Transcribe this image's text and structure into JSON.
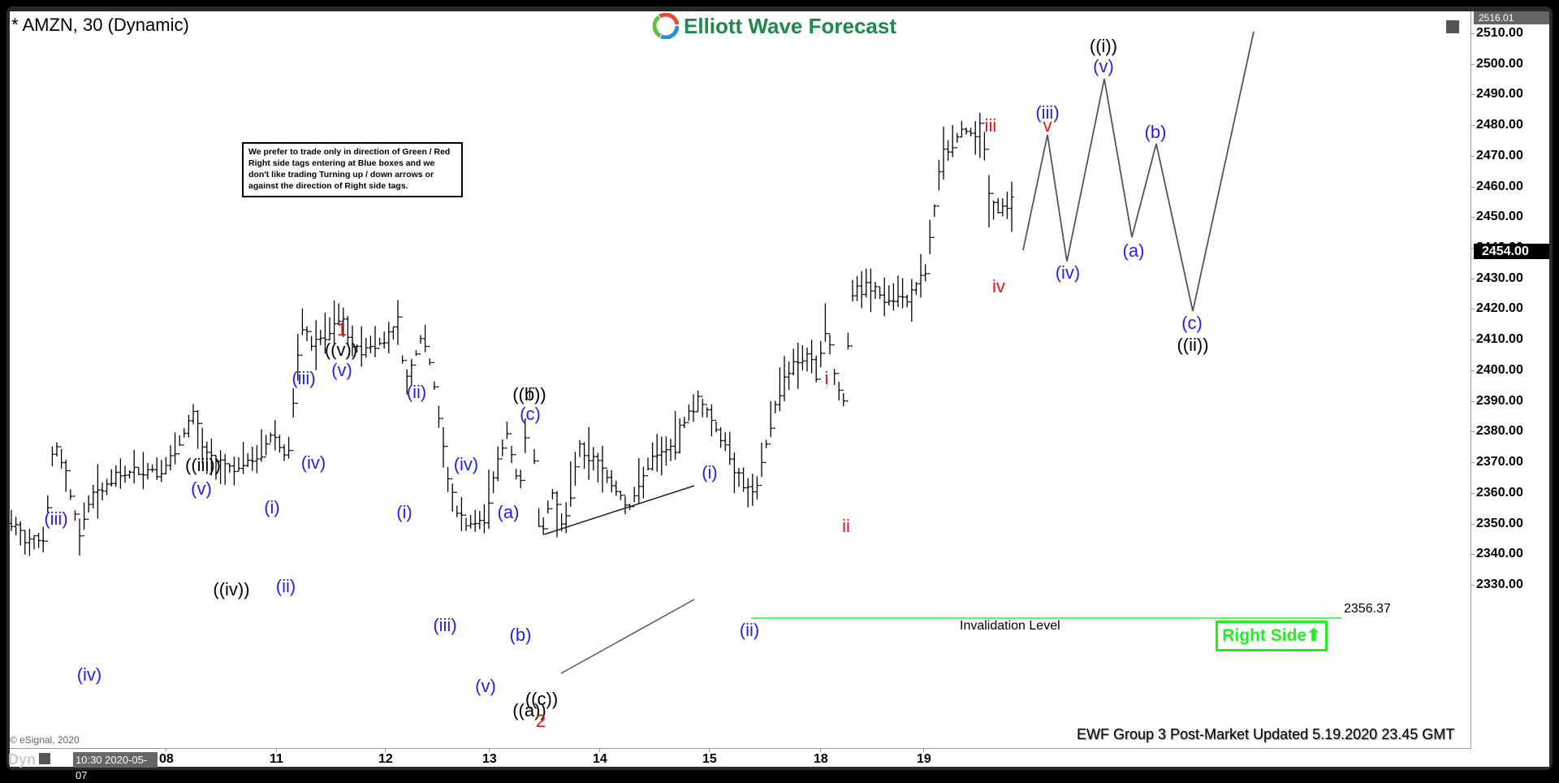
{
  "header": {
    "symbol_title": "* AMZN, 30 (Dynamic)",
    "brand": "Elliott Wave Forecast"
  },
  "note": {
    "text": "We prefer to trade only in direction of Green / Red Right side tags entering at Blue boxes and we don't like trading Turning up / down arrows or against the direction of Right side tags."
  },
  "price_axis": {
    "top_tag": "2516.01",
    "current_price": "2454.00",
    "labels": [
      "2510.00",
      "2500.00",
      "2490.00",
      "2480.00",
      "2470.00",
      "2460.00",
      "2450.00",
      "2440.00",
      "2430.00",
      "2420.00",
      "2410.00",
      "2400.00",
      "2390.00",
      "2380.00",
      "2370.00",
      "2360.00",
      "2350.00",
      "2340.00",
      "2330.00"
    ]
  },
  "time_axis": {
    "cursor_date": "10:30 2020-05-07",
    "labels": [
      "08",
      "11",
      "12",
      "13",
      "14",
      "15",
      "18",
      "19"
    ],
    "dyn_label": "Dyn"
  },
  "invalidation": {
    "label": "Invalidation Level",
    "price": "2356.37",
    "color": "#66ee66"
  },
  "right_side_tag": {
    "label": "Right Side",
    "arrow": "⬆",
    "color": "#22ee22"
  },
  "footer": {
    "copyright": "© eSignal, 2020",
    "update_text": "EWF Group 3 Post-Market Updated 5.19.2020 23.45 GMT"
  },
  "colors": {
    "blue_labels": "#2222ee",
    "red_labels": "#ee1111",
    "black_labels": "#000000",
    "brand_green": "#1b8a4a"
  },
  "chart_data": {
    "type": "ohlc-bar",
    "title": "* AMZN, 30 (Dynamic)",
    "xlabel": "",
    "ylabel": "Price",
    "ylim": [
      2325,
      2516.01
    ],
    "x_ticks": [
      "08",
      "11",
      "12",
      "13",
      "14",
      "15",
      "18",
      "19"
    ],
    "grid": false,
    "last_price": 2454.0,
    "invalidation_level": 2356.37,
    "wave_labels": [
      {
        "label": "(iii)",
        "color": "blue",
        "approx_price": 2379,
        "x_tick_near": "07"
      },
      {
        "label": "(iv)",
        "color": "blue",
        "approx_price": 2343,
        "x_tick_near": "07"
      },
      {
        "label": "((iii))",
        "color": "black",
        "approx_price": 2389,
        "x_tick_near": "08"
      },
      {
        "label": "(v)",
        "color": "blue",
        "approx_price": 2388,
        "x_tick_near": "08"
      },
      {
        "label": "((iv))",
        "color": "black",
        "approx_price": 2367,
        "x_tick_near": "08"
      },
      {
        "label": "(i)",
        "color": "blue",
        "approx_price": 2381,
        "x_tick_near": "11"
      },
      {
        "label": "(ii)",
        "color": "blue",
        "approx_price": 2366,
        "x_tick_near": "11"
      },
      {
        "label": "(iii)",
        "color": "blue",
        "approx_price": 2417,
        "x_tick_near": "11"
      },
      {
        "label": "(iv)",
        "color": "blue",
        "approx_price": 2399,
        "x_tick_near": "11"
      },
      {
        "label": "1",
        "color": "red",
        "approx_price": 2420,
        "x_tick_near": "11"
      },
      {
        "label": "((v))",
        "color": "black",
        "approx_price": 2420,
        "x_tick_near": "11"
      },
      {
        "label": "(v)",
        "color": "blue",
        "approx_price": 2420,
        "x_tick_near": "11"
      },
      {
        "label": "(i)",
        "color": "blue",
        "approx_price": 2388,
        "x_tick_near": "12"
      },
      {
        "label": "(ii)",
        "color": "blue",
        "approx_price": 2419,
        "x_tick_near": "12"
      },
      {
        "label": "(iii)",
        "color": "blue",
        "approx_price": 2355,
        "x_tick_near": "12"
      },
      {
        "label": "(iv)",
        "color": "blue",
        "approx_price": 2393,
        "x_tick_near": "12"
      },
      {
        "label": "(v)",
        "color": "blue",
        "approx_price": 2340,
        "x_tick_near": "13"
      },
      {
        "label": "((a))",
        "color": "black",
        "approx_price": 2340,
        "x_tick_near": "13"
      },
      {
        "label": "(a)",
        "color": "blue",
        "approx_price": 2384,
        "x_tick_near": "13"
      },
      {
        "label": "(b)",
        "color": "blue",
        "approx_price": 2355,
        "x_tick_near": "13"
      },
      {
        "label": "(c)",
        "color": "blue",
        "approx_price": 2408,
        "x_tick_near": "13"
      },
      {
        "label": "((b))",
        "color": "black",
        "approx_price": 2408,
        "x_tick_near": "13"
      },
      {
        "label": "((c))",
        "color": "black",
        "approx_price": 2338,
        "x_tick_near": "13"
      },
      {
        "label": "2",
        "color": "red",
        "approx_price": 2338,
        "x_tick_near": "13"
      },
      {
        "label": "(i)",
        "color": "blue",
        "approx_price": 2392,
        "x_tick_near": "15"
      },
      {
        "label": "(ii)",
        "color": "blue",
        "approx_price": 2356.37,
        "x_tick_near": "15"
      },
      {
        "label": "i",
        "color": "red",
        "approx_price": 2417,
        "x_tick_near": "18"
      },
      {
        "label": "ii",
        "color": "red",
        "approx_price": 2384,
        "x_tick_near": "18"
      },
      {
        "label": "iii",
        "color": "red",
        "approx_price": 2485,
        "x_tick_near": "19"
      },
      {
        "label": "iv",
        "color": "red",
        "approx_price": 2448,
        "x_tick_near": "19"
      }
    ],
    "projection_path": [
      {
        "label": "start",
        "price": 2454
      },
      {
        "label": "(iii) / v",
        "price": 2485
      },
      {
        "label": "(iv)",
        "price": 2452
      },
      {
        "label": "((i)) / (v)",
        "price": 2500
      },
      {
        "label": "(a)",
        "price": 2457
      },
      {
        "label": "(b)",
        "price": 2482
      },
      {
        "label": "((ii)) / (c)",
        "price": 2438
      },
      {
        "label": "end",
        "price": 2513
      }
    ],
    "ending_diagonal": {
      "upper_line": {
        "from_price": 2379,
        "to_price": 2391
      },
      "lower_line": {
        "from_price": 2342,
        "to_price": 2361
      }
    }
  }
}
